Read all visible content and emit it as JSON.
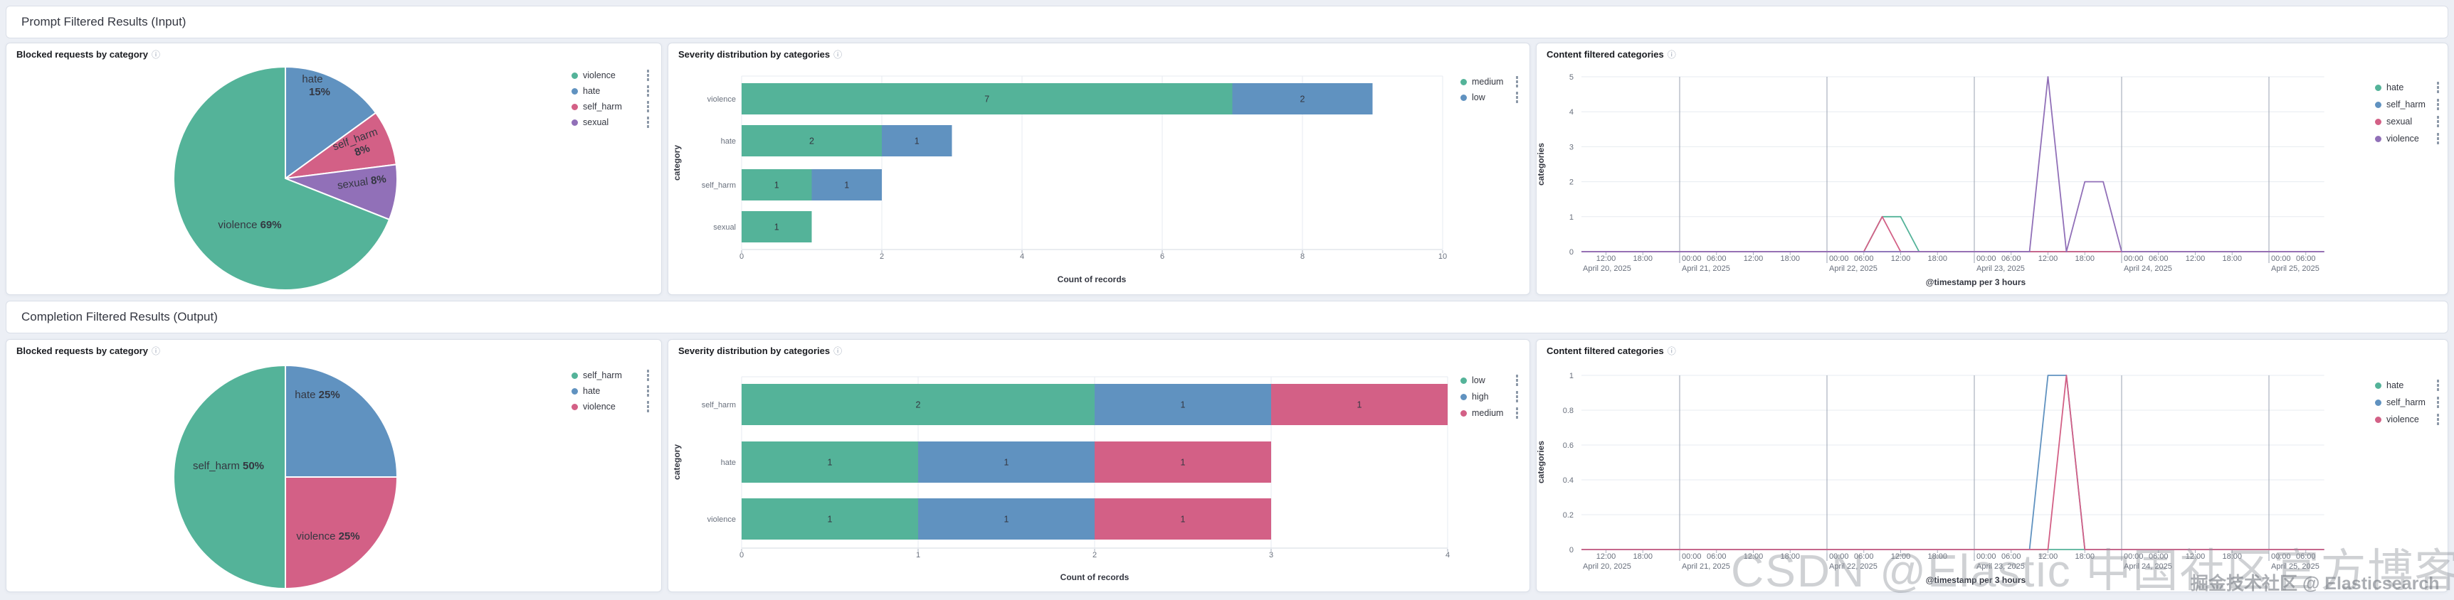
{
  "icons": {
    "info": "ⓘ"
  },
  "colors": {
    "green": "#54B399",
    "blue": "#6092C0",
    "pink": "#D36086",
    "purple": "#9170B8",
    "page_bg": "#eceff5",
    "panel_border": "#dadfe8",
    "grid": "#e7ebf0",
    "day_line": "#9aa2b0",
    "axis_text": "#69707d"
  },
  "rows": {
    "row1": {
      "header": "Prompt Filtered Results (Input)"
    },
    "row2": {
      "header": "Completion Filtered Results (Output)"
    }
  },
  "panels": {
    "r1p1": {
      "title": "Blocked requests by category",
      "chart_data": {
        "type": "pie",
        "title": "Blocked requests by category",
        "slices": [
          {
            "label": "hate",
            "pct": 15,
            "color": "#6092C0"
          },
          {
            "label": "self_harm",
            "pct": 8,
            "color": "#D36086"
          },
          {
            "label": "sexual",
            "pct": 8,
            "color": "#9170B8"
          },
          {
            "label": "violence",
            "pct": 69,
            "color": "#54B399"
          }
        ]
      },
      "legend_items": [
        {
          "label": "violence",
          "color": "#54B399"
        },
        {
          "label": "hate",
          "color": "#6092C0"
        },
        {
          "label": "self_harm",
          "color": "#D36086"
        },
        {
          "label": "sexual",
          "color": "#9170B8"
        }
      ]
    },
    "r1p2": {
      "title": "Severity distribution by categories",
      "chart_data": {
        "type": "bar",
        "orientation": "horizontal",
        "categories": [
          "violence",
          "hate",
          "self_harm",
          "sexual"
        ],
        "series": [
          {
            "name": "medium",
            "color": "#54B399",
            "values": [
              7,
              2,
              1,
              1
            ]
          },
          {
            "name": "low",
            "color": "#6092C0",
            "values": [
              2,
              1,
              1,
              0
            ]
          }
        ],
        "xlabel": "Count of records",
        "ylabel": "category",
        "x_ticks": [
          0,
          2,
          4,
          6,
          8,
          10
        ],
        "xlim": [
          0,
          10
        ]
      },
      "legend_items": [
        {
          "label": "medium",
          "color": "#54B399"
        },
        {
          "label": "low",
          "color": "#6092C0"
        }
      ]
    },
    "r1p3": {
      "title": "Content filtered categories",
      "chart_data": {
        "type": "line",
        "xlabel": "@timestamp per 3 hours",
        "ylabel": "categories",
        "ylim": [
          0,
          5
        ],
        "y_ticks": [
          0,
          1,
          2,
          3,
          4,
          5
        ],
        "x_origin": "April 20, 2025 00:00",
        "x_domain_hours": [
          8,
          129
        ],
        "day_boundaries_h": [
          24,
          48,
          72,
          96,
          120
        ],
        "x_ticks": [
          {
            "h": 12,
            "label": "12:00",
            "day": "April 20, 2025"
          },
          {
            "h": 18,
            "label": "18:00"
          },
          {
            "h": 24,
            "label": "00:00",
            "day": "April 21, 2025"
          },
          {
            "h": 30,
            "label": "06:00"
          },
          {
            "h": 36,
            "label": "12:00"
          },
          {
            "h": 42,
            "label": "18:00"
          },
          {
            "h": 48,
            "label": "00:00",
            "day": "April 22, 2025"
          },
          {
            "h": 54,
            "label": "06:00"
          },
          {
            "h": 60,
            "label": "12:00"
          },
          {
            "h": 66,
            "label": "18:00"
          },
          {
            "h": 72,
            "label": "00:00",
            "day": "April 23, 2025"
          },
          {
            "h": 78,
            "label": "06:00"
          },
          {
            "h": 84,
            "label": "12:00"
          },
          {
            "h": 90,
            "label": "18:00"
          },
          {
            "h": 96,
            "label": "00:00",
            "day": "April 24, 2025"
          },
          {
            "h": 102,
            "label": "06:00"
          },
          {
            "h": 108,
            "label": "12:00"
          },
          {
            "h": 114,
            "label": "18:00"
          },
          {
            "h": 120,
            "label": "00:00",
            "day": "April 25, 2025"
          },
          {
            "h": 126,
            "label": "06:00"
          }
        ],
        "series": [
          {
            "name": "hate",
            "color": "#54B399",
            "points": [
              [
                8,
                0
              ],
              [
                54,
                0
              ],
              [
                57,
                1
              ],
              [
                60,
                1
              ],
              [
                63,
                0
              ],
              [
                129,
                0
              ]
            ]
          },
          {
            "name": "self_harm",
            "color": "#6092C0",
            "points": [
              [
                8,
                0
              ],
              [
                129,
                0
              ]
            ]
          },
          {
            "name": "sexual",
            "color": "#D36086",
            "points": [
              [
                8,
                0
              ],
              [
                54,
                0
              ],
              [
                57,
                1
              ],
              [
                60,
                0
              ],
              [
                129,
                0
              ]
            ]
          },
          {
            "name": "violence",
            "color": "#9170B8",
            "points": [
              [
                8,
                0
              ],
              [
                81,
                0
              ],
              [
                84,
                5
              ],
              [
                87,
                0
              ],
              [
                90,
                2
              ],
              [
                93,
                2
              ],
              [
                96,
                0
              ],
              [
                129,
                0
              ]
            ]
          }
        ]
      },
      "legend_items": [
        {
          "label": "hate",
          "color": "#54B399"
        },
        {
          "label": "self_harm",
          "color": "#6092C0"
        },
        {
          "label": "sexual",
          "color": "#D36086"
        },
        {
          "label": "violence",
          "color": "#9170B8"
        }
      ]
    },
    "r2p1": {
      "title": "Blocked requests by category",
      "chart_data": {
        "type": "pie",
        "title": "Blocked requests by category",
        "slices": [
          {
            "label": "hate",
            "pct": 25,
            "color": "#6092C0"
          },
          {
            "label": "violence",
            "pct": 25,
            "color": "#D36086"
          },
          {
            "label": "self_harm",
            "pct": 50,
            "color": "#54B399"
          }
        ]
      },
      "legend_items": [
        {
          "label": "self_harm",
          "color": "#54B399"
        },
        {
          "label": "hate",
          "color": "#6092C0"
        },
        {
          "label": "violence",
          "color": "#D36086"
        }
      ]
    },
    "r2p2": {
      "title": "Severity distribution by categories",
      "chart_data": {
        "type": "bar",
        "orientation": "horizontal",
        "categories": [
          "self_harm",
          "hate",
          "violence"
        ],
        "series": [
          {
            "name": "low",
            "color": "#54B399",
            "values": [
              2,
              1,
              1
            ]
          },
          {
            "name": "high",
            "color": "#6092C0",
            "values": [
              1,
              1,
              1
            ]
          },
          {
            "name": "medium",
            "color": "#D36086",
            "values": [
              1,
              1,
              1
            ]
          }
        ],
        "xlabel": "Count of records",
        "ylabel": "category",
        "x_ticks": [
          0,
          1,
          2,
          3,
          4
        ],
        "xlim": [
          0,
          4
        ]
      },
      "legend_items": [
        {
          "label": "low",
          "color": "#54B399"
        },
        {
          "label": "high",
          "color": "#6092C0"
        },
        {
          "label": "medium",
          "color": "#D36086"
        }
      ]
    },
    "r2p3": {
      "title": "Content filtered categories",
      "chart_data": {
        "type": "line",
        "xlabel": "@timestamp per 3 hours",
        "ylabel": "categories",
        "ylim": [
          0,
          1
        ],
        "y_ticks": [
          0,
          0.2,
          0.4,
          0.6,
          0.8,
          1
        ],
        "x_origin": "April 20, 2025 00:00",
        "x_domain_hours": [
          8,
          129
        ],
        "day_boundaries_h": [
          24,
          48,
          72,
          96,
          120
        ],
        "x_ticks": [
          {
            "h": 12,
            "label": "12:00",
            "day": "April 20, 2025"
          },
          {
            "h": 18,
            "label": "18:00"
          },
          {
            "h": 24,
            "label": "00:00",
            "day": "April 21, 2025"
          },
          {
            "h": 30,
            "label": "06:00"
          },
          {
            "h": 36,
            "label": "12:00"
          },
          {
            "h": 42,
            "label": "18:00"
          },
          {
            "h": 48,
            "label": "00:00",
            "day": "April 22, 2025"
          },
          {
            "h": 54,
            "label": "06:00"
          },
          {
            "h": 60,
            "label": "12:00"
          },
          {
            "h": 66,
            "label": "18:00"
          },
          {
            "h": 72,
            "label": "00:00",
            "day": "April 23, 2025"
          },
          {
            "h": 78,
            "label": "06:00"
          },
          {
            "h": 84,
            "label": "12:00"
          },
          {
            "h": 90,
            "label": "18:00"
          },
          {
            "h": 96,
            "label": "00:00",
            "day": "April 24, 2025"
          },
          {
            "h": 102,
            "label": "06:00"
          },
          {
            "h": 108,
            "label": "12:00"
          },
          {
            "h": 114,
            "label": "18:00"
          },
          {
            "h": 120,
            "label": "00:00",
            "day": "April 25, 2025"
          },
          {
            "h": 126,
            "label": "06:00"
          }
        ],
        "series": [
          {
            "name": "hate",
            "color": "#54B399",
            "points": [
              [
                8,
                0
              ],
              [
                129,
                0
              ]
            ]
          },
          {
            "name": "self_harm",
            "color": "#6092C0",
            "points": [
              [
                8,
                0
              ],
              [
                81,
                0
              ],
              [
                84,
                1
              ],
              [
                87,
                1
              ],
              [
                90,
                0
              ],
              [
                129,
                0
              ]
            ]
          },
          {
            "name": "violence",
            "color": "#D36086",
            "points": [
              [
                8,
                0
              ],
              [
                84,
                0
              ],
              [
                87,
                1
              ],
              [
                90,
                0
              ],
              [
                129,
                0
              ]
            ]
          }
        ]
      },
      "legend_items": [
        {
          "label": "hate",
          "color": "#54B399"
        },
        {
          "label": "self_harm",
          "color": "#6092C0"
        },
        {
          "label": "violence",
          "color": "#D36086"
        }
      ]
    }
  },
  "watermark": {
    "large": "CSDN @Elastic 中国社区官方博客",
    "small": "掘金技术社区 @ Elasticsearch"
  }
}
